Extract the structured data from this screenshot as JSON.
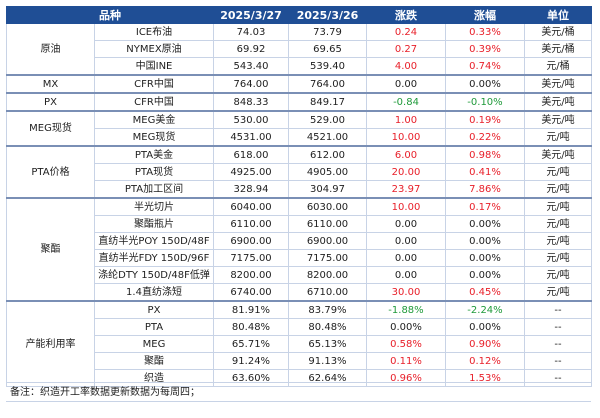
{
  "header": [
    "品种",
    "2025/3/27",
    "2025/3/26",
    "涨跌",
    "涨幅",
    "单位"
  ],
  "groups": [
    {
      "category": "原油",
      "rows": [
        {
          "name": "ICE布油",
          "d1": "74.03",
          "d2": "73.79",
          "chg": "0.24",
          "pct": "0.33%",
          "unit": "美元/桶",
          "color": "red"
        },
        {
          "name": "NYMEX原油",
          "d1": "69.92",
          "d2": "69.65",
          "chg": "0.27",
          "pct": "0.39%",
          "unit": "美元/桶",
          "color": "red"
        },
        {
          "name": "中国INE",
          "d1": "543.40",
          "d2": "539.40",
          "chg": "4.00",
          "pct": "0.74%",
          "unit": "元/桶",
          "color": "red"
        }
      ]
    },
    {
      "category": "MX",
      "rows": [
        {
          "name": "CFR中国",
          "d1": "764.00",
          "d2": "764.00",
          "chg": "0.00",
          "pct": "0.00%",
          "unit": "美元/吨",
          "color": "neutral"
        }
      ]
    },
    {
      "category": "PX",
      "rows": [
        {
          "name": "CFR中国",
          "d1": "848.33",
          "d2": "849.17",
          "chg": "-0.84",
          "pct": "-0.10%",
          "unit": "美元/吨",
          "color": "green"
        }
      ]
    },
    {
      "category": "MEG现货",
      "rows": [
        {
          "name": "MEG美金",
          "d1": "530.00",
          "d2": "529.00",
          "chg": "1.00",
          "pct": "0.19%",
          "unit": "美元/吨",
          "color": "red"
        },
        {
          "name": "MEG现货",
          "d1": "4531.00",
          "d2": "4521.00",
          "chg": "10.00",
          "pct": "0.22%",
          "unit": "元/吨",
          "color": "red"
        }
      ]
    },
    {
      "category": "PTA价格",
      "rows": [
        {
          "name": "PTA美金",
          "d1": "618.00",
          "d2": "612.00",
          "chg": "6.00",
          "pct": "0.98%",
          "unit": "美元/吨",
          "color": "red"
        },
        {
          "name": "PTA现货",
          "d1": "4925.00",
          "d2": "4905.00",
          "chg": "20.00",
          "pct": "0.41%",
          "unit": "元/吨",
          "color": "red"
        },
        {
          "name": "PTA加工区间",
          "d1": "328.94",
          "d2": "304.97",
          "chg": "23.97",
          "pct": "7.86%",
          "unit": "元/吨",
          "color": "red"
        }
      ]
    },
    {
      "category": "聚酯",
      "rows": [
        {
          "name": "半光切片",
          "d1": "6040.00",
          "d2": "6030.00",
          "chg": "10.00",
          "pct": "0.17%",
          "unit": "元/吨",
          "color": "red"
        },
        {
          "name": "聚酯瓶片",
          "d1": "6110.00",
          "d2": "6110.00",
          "chg": "0.00",
          "pct": "0.00%",
          "unit": "元/吨",
          "color": "neutral"
        },
        {
          "name": "直纺半光POY 150D/48F",
          "d1": "6900.00",
          "d2": "6900.00",
          "chg": "0.00",
          "pct": "0.00%",
          "unit": "元/吨",
          "color": "neutral"
        },
        {
          "name": "直纺半光FDY 150D/96F",
          "d1": "7175.00",
          "d2": "7175.00",
          "chg": "0.00",
          "pct": "0.00%",
          "unit": "元/吨",
          "color": "neutral"
        },
        {
          "name": "涤纶DTY 150D/48F低弹",
          "d1": "8200.00",
          "d2": "8200.00",
          "chg": "0.00",
          "pct": "0.00%",
          "unit": "元/吨",
          "color": "neutral"
        },
        {
          "name": "1.4直纺涤短",
          "d1": "6740.00",
          "d2": "6710.00",
          "chg": "30.00",
          "pct": "0.45%",
          "unit": "元/吨",
          "color": "red"
        }
      ]
    },
    {
      "category": "产能利用率",
      "rows": [
        {
          "name": "PX",
          "d1": "81.91%",
          "d2": "83.79%",
          "chg": "-1.88%",
          "pct": "-2.24%",
          "unit": "--",
          "color": "green"
        },
        {
          "name": "PTA",
          "d1": "80.48%",
          "d2": "80.48%",
          "chg": "0.00%",
          "pct": "0.00%",
          "unit": "--",
          "color": "neutral"
        },
        {
          "name": "MEG",
          "d1": "65.71%",
          "d2": "65.13%",
          "chg": "0.58%",
          "pct": "0.90%",
          "unit": "--",
          "color": "red"
        },
        {
          "name": "聚酯",
          "d1": "91.24%",
          "d2": "91.13%",
          "chg": "0.11%",
          "pct": "0.12%",
          "unit": "--",
          "color": "red"
        },
        {
          "name": "织造",
          "d1": "63.60%",
          "d2": "62.64%",
          "chg": "0.96%",
          "pct": "1.53%",
          "unit": "--",
          "color": "red"
        }
      ]
    }
  ],
  "note": "备注：织造开工率数据更新数据为每周四；"
}
